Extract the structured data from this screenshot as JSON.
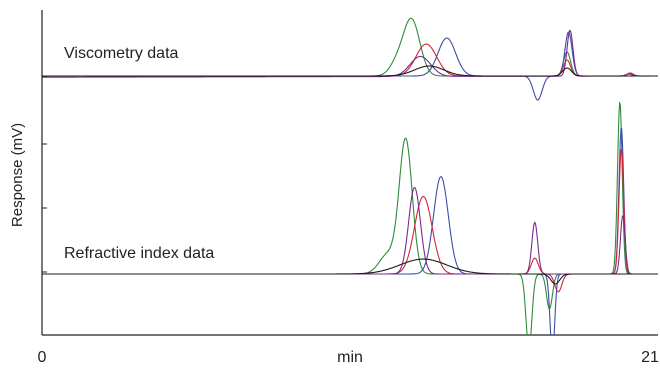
{
  "chart_data": {
    "type": "line",
    "title": "",
    "ylabel": "Response (mV)",
    "xlabel": "min",
    "xlim": [
      0,
      21
    ],
    "x_tick_labels": [
      "0",
      "21"
    ],
    "grid": false,
    "legend": "none",
    "annotations": [
      "Viscometry data",
      "Refractive index data"
    ],
    "series_colors": [
      "#2e8b3a",
      "#3a4fa8",
      "#d1263a",
      "#7a2a8f",
      "#1b1b1b"
    ],
    "panels": [
      {
        "name": "Viscometry data",
        "baseline": 0,
        "ylim": [
          -0.5,
          3.2
        ],
        "series": [
          {
            "color": "#2e8b3a",
            "peaks": [
              {
                "t": 12.6,
                "h": 2.8,
                "w": 0.28
              },
              {
                "t": 12.1,
                "h": 0.6,
                "w": 0.25
              },
              {
                "t": 17.9,
                "h": 1.2,
                "w": 0.12
              },
              {
                "t": 20.0,
                "h": 0.1,
                "w": 0.1
              }
            ]
          },
          {
            "color": "#3a4fa8",
            "peaks": [
              {
                "t": 13.8,
                "h": 1.9,
                "w": 0.3
              },
              {
                "t": 16.9,
                "h": -1.2,
                "w": 0.15
              },
              {
                "t": 17.95,
                "h": 2.2,
                "w": 0.12
              },
              {
                "t": 20.05,
                "h": 0.15,
                "w": 0.1
              }
            ]
          },
          {
            "color": "#d1263a",
            "peaks": [
              {
                "t": 13.1,
                "h": 1.6,
                "w": 0.35
              },
              {
                "t": 17.9,
                "h": 0.8,
                "w": 0.12
              },
              {
                "t": 20.0,
                "h": 0.1,
                "w": 0.1
              }
            ]
          },
          {
            "color": "#7a2a8f",
            "peaks": [
              {
                "t": 12.9,
                "h": 1.0,
                "w": 0.35
              },
              {
                "t": 18.0,
                "h": 2.3,
                "w": 0.1
              },
              {
                "t": 20.05,
                "h": 0.15,
                "w": 0.1
              }
            ]
          },
          {
            "color": "#1b1b1b",
            "peaks": [
              {
                "t": 13.2,
                "h": 0.5,
                "w": 0.5
              },
              {
                "t": 17.9,
                "h": 0.4,
                "w": 0.15
              }
            ]
          }
        ]
      },
      {
        "name": "Refractive index data",
        "baseline": 0,
        "ylim": [
          -6,
          17.5
        ],
        "series": [
          {
            "color": "#2e8b3a",
            "peaks": [
              {
                "t": 12.4,
                "h": 13.4,
                "w": 0.22
              },
              {
                "t": 11.8,
                "h": 2.0,
                "w": 0.3
              },
              {
                "t": 16.6,
                "h": -7.5,
                "w": 0.1
              },
              {
                "t": 17.3,
                "h": -3.5,
                "w": 0.1
              },
              {
                "t": 19.7,
                "h": 17.3,
                "w": 0.08
              }
            ]
          },
          {
            "color": "#3a4fa8",
            "peaks": [
              {
                "t": 13.6,
                "h": 9.8,
                "w": 0.25
              },
              {
                "t": 17.4,
                "h": -8.0,
                "w": 0.08
              },
              {
                "t": 19.75,
                "h": 14.8,
                "w": 0.08
              }
            ]
          },
          {
            "color": "#d1263a",
            "peaks": [
              {
                "t": 13.0,
                "h": 7.8,
                "w": 0.3
              },
              {
                "t": 16.8,
                "h": 1.6,
                "w": 0.12
              },
              {
                "t": 17.6,
                "h": -1.8,
                "w": 0.12
              },
              {
                "t": 19.75,
                "h": 12.6,
                "w": 0.08
              }
            ]
          },
          {
            "color": "#7a2a8f",
            "peaks": [
              {
                "t": 12.7,
                "h": 8.7,
                "w": 0.2
              },
              {
                "t": 16.8,
                "h": 5.2,
                "w": 0.1
              },
              {
                "t": 19.8,
                "h": 5.9,
                "w": 0.08
              }
            ]
          },
          {
            "color": "#1b1b1b",
            "peaks": [
              {
                "t": 13.0,
                "h": 1.5,
                "w": 0.8
              },
              {
                "t": 17.5,
                "h": -1.0,
                "w": 0.15
              }
            ]
          }
        ]
      }
    ]
  }
}
